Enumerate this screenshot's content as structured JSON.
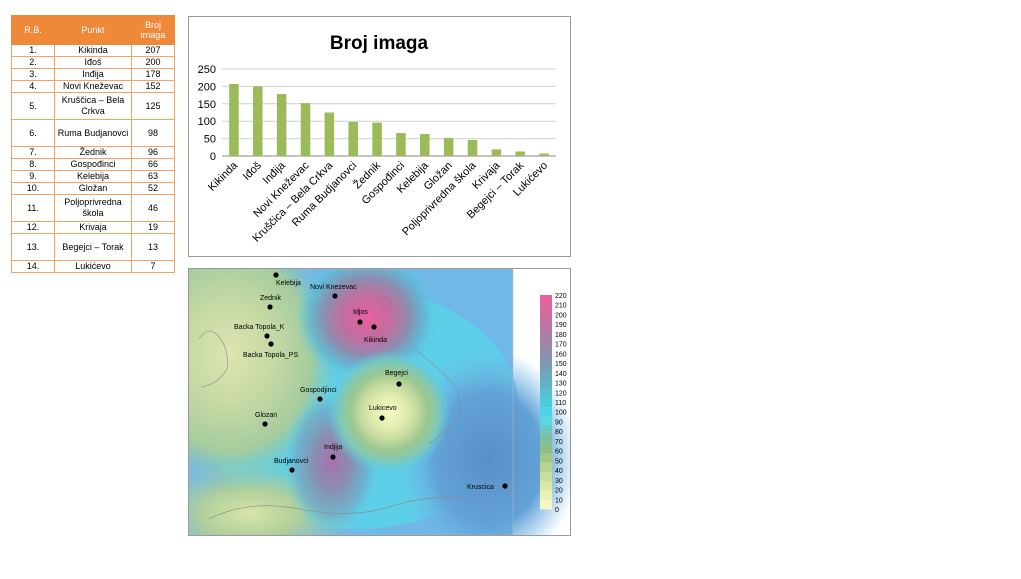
{
  "table": {
    "headers": {
      "rb": "R.B.",
      "punkt": "Punkt",
      "broj": "Broj imaga"
    },
    "rows": [
      {
        "rb": "1.",
        "punkt": "Kikinda",
        "broj": "207"
      },
      {
        "rb": "2.",
        "punkt": "Iđoš",
        "broj": "200"
      },
      {
        "rb": "3.",
        "punkt": "Inđija",
        "broj": "178"
      },
      {
        "rb": "4.",
        "punkt": "Novi Kneževac",
        "broj": "152"
      },
      {
        "rb": "5.",
        "punkt": "Kruščica – Bela Crkva",
        "broj": "125"
      },
      {
        "rb": "6.",
        "punkt": "Ruma Budjanovci",
        "broj": "98"
      },
      {
        "rb": "7.",
        "punkt": "Žednik",
        "broj": "96"
      },
      {
        "rb": "8.",
        "punkt": "Gospođinci",
        "broj": "66"
      },
      {
        "rb": "9.",
        "punkt": "Kelebija",
        "broj": "63"
      },
      {
        "rb": "10.",
        "punkt": "Gložan",
        "broj": "52"
      },
      {
        "rb": "11.",
        "punkt": "Poljoprivredna škola",
        "broj": "46"
      },
      {
        "rb": "12.",
        "punkt": "Krivaja",
        "broj": "19"
      },
      {
        "rb": "13.",
        "punkt": "Begejci – Torak",
        "broj": "13"
      },
      {
        "rb": "14.",
        "punkt": "Lukićevo",
        "broj": "7"
      }
    ]
  },
  "chart_data": [
    {
      "type": "bar",
      "title": "Broj imaga",
      "categories": [
        "Kikinda",
        "Iđoš",
        "Inđija",
        "Novi Kneževac",
        "Kruščica – Bela Crkva",
        "Ruma Budjanovci",
        "Žednik",
        "Gospođinci",
        "Kelebija",
        "Gložan",
        "Poljoprivredna škola",
        "Krivaja",
        "Begejci – Torak",
        "Lukićevo"
      ],
      "values": [
        207,
        200,
        178,
        152,
        125,
        98,
        96,
        66,
        63,
        52,
        46,
        19,
        13,
        7
      ],
      "ylim": [
        0,
        250
      ],
      "yticks": [
        "0",
        "50",
        "100",
        "150",
        "200",
        "250"
      ],
      "grid": true,
      "bar_color": "#9bbb59"
    },
    {
      "type": "heatmap",
      "stations": [
        "Kelebija",
        "Zednik",
        "Novi Knezevac",
        "Idjos",
        "Kikinda",
        "Backa Topola_K",
        "Backa Topola_PS",
        "Begejci",
        "Gospodjinci",
        "Lukicevo",
        "Glozan",
        "Indjija",
        "Budjanovci",
        "Kruscica"
      ],
      "colorbar": {
        "ticks": [
          "220",
          "210",
          "200",
          "190",
          "180",
          "170",
          "160",
          "150",
          "140",
          "130",
          "120",
          "110",
          "100",
          "90",
          "80",
          "70",
          "60",
          "50",
          "40",
          "30",
          "20",
          "10",
          "0"
        ],
        "colors": [
          "#e8609c",
          "#d8689e",
          "#c870a0",
          "#b778a3",
          "#a880a6",
          "#9988aa",
          "#8a92af",
          "#7c9cb5",
          "#6fa7bd",
          "#62b3c6",
          "#56bfd0",
          "#4dcbdb",
          "#4ed4e6",
          "#5ad8e8",
          "#6fc7c0",
          "#7fbf9f",
          "#8fbf88",
          "#a3c886",
          "#b8d38f",
          "#cbdd9c",
          "#dce7a8",
          "#ebf0b6",
          "#f7f7c4"
        ]
      },
      "colors": {
        "high": "#e8609c",
        "mid": "#5ad2e8",
        "low": "#f7f7c4",
        "base": "#70b8e8"
      }
    }
  ]
}
